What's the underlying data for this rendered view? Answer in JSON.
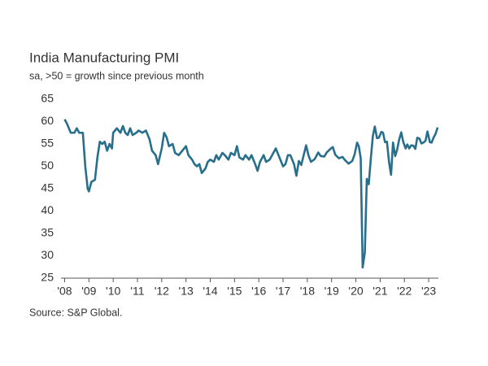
{
  "chart_data": {
    "type": "line",
    "title": "India Manufacturing PMI",
    "subtitle": "sa, >50 = growth since previous month",
    "source": "Source: S&P Global.",
    "color": "#286f8c",
    "grid": false,
    "x": [
      2008.0,
      2008.1,
      2008.25,
      2008.4,
      2008.5,
      2008.6,
      2008.75,
      2008.85,
      2008.95,
      2009.0,
      2009.1,
      2009.25,
      2009.35,
      2009.45,
      2009.55,
      2009.65,
      2009.75,
      2009.85,
      2009.95,
      2010.0,
      2010.15,
      2010.3,
      2010.4,
      2010.5,
      2010.6,
      2010.7,
      2010.8,
      2010.95,
      2011.05,
      2011.2,
      2011.35,
      2011.5,
      2011.6,
      2011.75,
      2011.85,
      2012.0,
      2012.1,
      2012.2,
      2012.3,
      2012.45,
      2012.55,
      2012.7,
      2012.85,
      2013.0,
      2013.1,
      2013.25,
      2013.35,
      2013.45,
      2013.55,
      2013.65,
      2013.8,
      2013.9,
      2014.0,
      2014.15,
      2014.25,
      2014.35,
      2014.5,
      2014.6,
      2014.75,
      2014.85,
      2015.0,
      2015.1,
      2015.2,
      2015.35,
      2015.45,
      2015.6,
      2015.7,
      2015.85,
      2015.95,
      2016.05,
      2016.2,
      2016.3,
      2016.45,
      2016.55,
      2016.7,
      2016.85,
      2017.0,
      2017.1,
      2017.2,
      2017.3,
      2017.45,
      2017.55,
      2017.65,
      2017.75,
      2017.85,
      2017.95,
      2018.05,
      2018.15,
      2018.3,
      2018.45,
      2018.55,
      2018.7,
      2018.8,
      2018.95,
      2019.05,
      2019.15,
      2019.3,
      2019.45,
      2019.55,
      2019.7,
      2019.85,
      2019.95,
      2020.05,
      2020.12,
      2020.2,
      2020.28,
      2020.37,
      2020.45,
      2020.53,
      2020.62,
      2020.7,
      2020.78,
      2020.87,
      2020.95,
      2021.05,
      2021.12,
      2021.2,
      2021.28,
      2021.37,
      2021.45,
      2021.53,
      2021.62,
      2021.7,
      2021.78,
      2021.87,
      2021.95,
      2022.05,
      2022.12,
      2022.2,
      2022.28,
      2022.37,
      2022.45,
      2022.53,
      2022.62,
      2022.7,
      2022.78,
      2022.87,
      2022.95,
      2023.05,
      2023.12,
      2023.2,
      2023.28,
      2023.37
    ],
    "values": [
      60.5,
      59.5,
      57.5,
      57.5,
      58.5,
      57.5,
      57.5,
      50,
      45,
      44.4,
      46.5,
      47,
      52,
      55.5,
      55,
      55.5,
      53.5,
      55,
      54,
      57.5,
      58.5,
      57.5,
      59,
      57.5,
      57,
      58.5,
      57,
      57.5,
      58,
      57.5,
      58,
      56,
      53.5,
      52.5,
      50.5,
      54,
      57.5,
      56.5,
      54.5,
      55,
      53,
      52.5,
      53.5,
      54.5,
      52.5,
      51.5,
      50.5,
      50,
      50.5,
      48.5,
      49.5,
      51,
      51.5,
      51,
      52.5,
      51.5,
      53,
      52.5,
      51.5,
      53,
      52.5,
      54.5,
      52,
      51.5,
      52.5,
      51.5,
      52.5,
      50.5,
      49,
      51,
      52.5,
      51,
      51.5,
      52.5,
      54,
      52,
      50,
      50.5,
      52.5,
      52.5,
      50.5,
      47.9,
      51.2,
      50.3,
      52.5,
      54.7,
      52.4,
      51,
      51.6,
      53.1,
      52.3,
      52.2,
      53.1,
      53.9,
      54.3,
      52.6,
      51.8,
      52.1,
      51.4,
      50.6,
      51.2,
      52.7,
      55.3,
      54.5,
      51.8,
      27.4,
      30.8,
      47.2,
      46,
      52,
      56.8,
      58.9,
      56.3,
      56.4,
      57.7,
      57.5,
      55.4,
      55.5,
      50.8,
      48.1,
      55.3,
      52.3,
      53.7,
      55.9,
      57.6,
      55.5,
      54,
      54.9,
      54,
      54.7,
      54.6,
      53.9,
      56.4,
      56.2,
      55.1,
      55.3,
      55.7,
      57.8,
      55.4,
      55.3,
      56.4,
      57.2,
      58.7
    ],
    "xlim": [
      2007.85,
      2023.4
    ],
    "xticks": [
      {
        "value": 2008,
        "label": "'08"
      },
      {
        "value": 2009,
        "label": "'09"
      },
      {
        "value": 2010,
        "label": "'10"
      },
      {
        "value": 2011,
        "label": "'11"
      },
      {
        "value": 2012,
        "label": "'12"
      },
      {
        "value": 2013,
        "label": "'13"
      },
      {
        "value": 2014,
        "label": "'14"
      },
      {
        "value": 2015,
        "label": "'15"
      },
      {
        "value": 2016,
        "label": "'16"
      },
      {
        "value": 2017,
        "label": "'17"
      },
      {
        "value": 2018,
        "label": "'18"
      },
      {
        "value": 2019,
        "label": "'19"
      },
      {
        "value": 2020,
        "label": "'20"
      },
      {
        "value": 2021,
        "label": "'21"
      },
      {
        "value": 2022,
        "label": "'22"
      },
      {
        "value": 2023,
        "label": "'23"
      }
    ],
    "ylim": [
      25,
      65
    ],
    "yticks": [
      25,
      30,
      35,
      40,
      45,
      50,
      55,
      60,
      65
    ]
  }
}
